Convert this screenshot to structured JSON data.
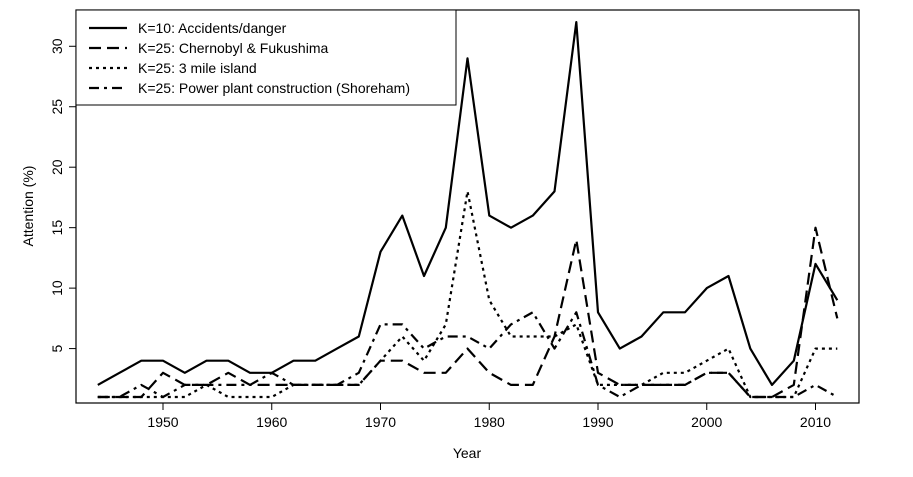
{
  "chart_data": {
    "type": "line",
    "title": "",
    "xlabel": "Year",
    "ylabel": "Attention (%)",
    "xlim": [
      1942,
      2014
    ],
    "ylim": [
      0.5,
      33
    ],
    "xticks": [
      1950,
      1960,
      1970,
      1980,
      1990,
      2000,
      2010
    ],
    "yticks": [
      5,
      10,
      15,
      20,
      25,
      30
    ],
    "grid": false,
    "legend_position": "top-left",
    "x": [
      1944,
      1946,
      1948,
      1950,
      1952,
      1954,
      1956,
      1958,
      1960,
      1962,
      1964,
      1966,
      1968,
      1970,
      1972,
      1974,
      1976,
      1978,
      1980,
      1982,
      1984,
      1986,
      1988,
      1990,
      1992,
      1994,
      1996,
      1998,
      2000,
      2002,
      2004,
      2006,
      2008,
      2010,
      2012
    ],
    "series": [
      {
        "name": "K=10: Accidents/danger",
        "dash": "solid",
        "values": [
          2,
          3,
          4,
          4,
          3,
          4,
          4,
          3,
          3,
          4,
          4,
          5,
          6,
          13,
          16,
          11,
          15,
          29,
          16,
          15,
          16,
          18,
          32,
          8,
          5,
          6,
          8,
          8,
          10,
          11,
          5,
          2,
          4,
          12,
          9
        ]
      },
      {
        "name": "K=25: Chernobyl & Fukushima",
        "dash": "long-dash",
        "values": [
          1,
          1,
          1,
          3,
          2,
          2,
          3,
          2,
          2,
          2,
          2,
          2,
          2,
          4,
          4,
          3,
          3,
          5,
          3,
          2,
          2,
          6,
          14,
          3,
          2,
          2,
          2,
          2,
          3,
          3,
          1,
          1,
          2,
          15,
          7.5
        ]
      },
      {
        "name": "K=25: 3 mile island",
        "dash": "dotted",
        "values": [
          1,
          1,
          1,
          1,
          1,
          2,
          1,
          1,
          1,
          2,
          2,
          2,
          2,
          4,
          6,
          4,
          7,
          18,
          9,
          6,
          6,
          6,
          7,
          2,
          2,
          2,
          3,
          3,
          4,
          5,
          1,
          1,
          1,
          5,
          5
        ]
      },
      {
        "name": "K=25: Power plant construction (Shoreham)",
        "dash": "dash-dot",
        "values": [
          1,
          1,
          2,
          1,
          2,
          2,
          2,
          2,
          3,
          2,
          2,
          2,
          3,
          7,
          7,
          5,
          6,
          6,
          5,
          7,
          8,
          5,
          8,
          2,
          1,
          2,
          2,
          2,
          3,
          3,
          1,
          1,
          1,
          2,
          1
        ]
      }
    ]
  }
}
